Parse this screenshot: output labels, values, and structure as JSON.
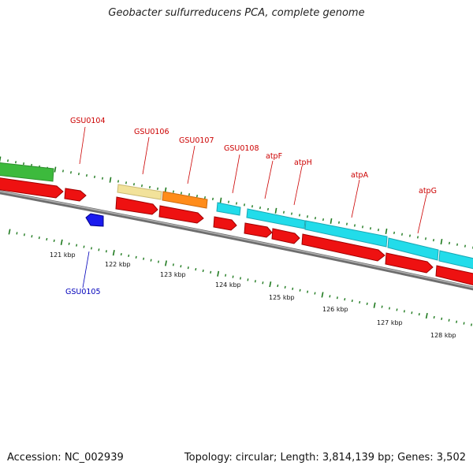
{
  "title": "Geobacter sulfurreducens PCA, complete genome",
  "footer": {
    "accession": "Accession: NC_002939",
    "summary": "Topology: circular; Length: 3,814,139 bp; Genes: 3,502"
  },
  "colors": {
    "backbone": "#808080",
    "cds": "#ee1111",
    "forward_label": "#cc0000",
    "reverse_label": "#0000bb",
    "reverse_gene": "#1a1aee",
    "ticks": "#1f7a1f",
    "green_category": "#3dba3d",
    "khaki_category": "#f2e29a",
    "orange_category": "#ff8c1a",
    "cyan_category": "#22dcea"
  },
  "ruler": {
    "unit": "kbp",
    "labels": [
      "121 kbp",
      "122 kbp",
      "123 kbp",
      "124 kbp",
      "125 kbp",
      "126 kbp",
      "127 kbp",
      "128 kbp"
    ]
  },
  "genes": [
    {
      "id": "GSU0104",
      "strand": "forward"
    },
    {
      "id": "GSU0105",
      "strand": "reverse"
    },
    {
      "id": "GSU0106",
      "strand": "forward"
    },
    {
      "id": "GSU0107",
      "strand": "forward"
    },
    {
      "id": "GSU0108",
      "strand": "forward"
    },
    {
      "id": "atpF",
      "strand": "forward"
    },
    {
      "id": "atpH",
      "strand": "forward"
    },
    {
      "id": "atpA",
      "strand": "forward"
    },
    {
      "id": "atpG",
      "strand": "forward"
    }
  ]
}
